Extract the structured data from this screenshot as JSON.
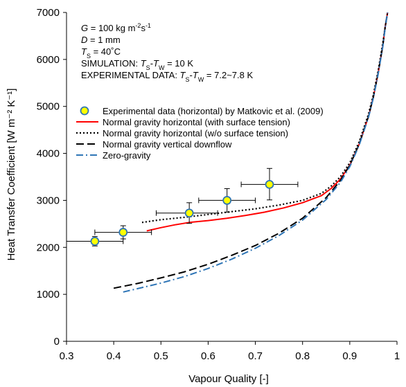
{
  "chart_data": {
    "type": "line",
    "xlabel": "Vapour Quality  [-]",
    "ylabel": "Heat Transfer Coefficient [W m⁻² K⁻¹]",
    "xlim": [
      0.3,
      1.0
    ],
    "ylim": [
      0,
      7000
    ],
    "x_ticks": [
      "0.3",
      "0.4",
      "0.5",
      "0.6",
      "0.7",
      "0.8",
      "0.9",
      "1"
    ],
    "y_ticks": [
      "0",
      "1000",
      "2000",
      "3000",
      "4000",
      "5000",
      "6000",
      "7000"
    ],
    "grid": false,
    "legend_position": "upper-left",
    "annotations": [
      {
        "segments": [
          {
            "t": "G",
            "s": "i"
          },
          {
            "t": " = 100 kg m"
          },
          {
            "t": "-2",
            "s": "sup"
          },
          {
            "t": "s"
          },
          {
            "t": "-1",
            "s": "sup"
          }
        ]
      },
      {
        "segments": [
          {
            "t": "D",
            "s": "i"
          },
          {
            "t": " = 1 mm"
          }
        ]
      },
      {
        "segments": [
          {
            "t": "T",
            "s": "i"
          },
          {
            "t": "S",
            "s": "sub"
          },
          {
            "t": " = 40˚C"
          }
        ]
      },
      {
        "segments": [
          {
            "t": "SIMULATION: "
          },
          {
            "t": "T",
            "s": "i"
          },
          {
            "t": "S",
            "s": "sub"
          },
          {
            "t": "-"
          },
          {
            "t": "T",
            "s": "i"
          },
          {
            "t": "W",
            "s": "sub"
          },
          {
            "t": " = 10 K"
          }
        ]
      },
      {
        "segments": [
          {
            "t": "EXPERIMENTAL DATA: "
          },
          {
            "t": "T",
            "s": "i"
          },
          {
            "t": "S",
            "s": "sub"
          },
          {
            "t": "-"
          },
          {
            "t": "T",
            "s": "i"
          },
          {
            "t": "W",
            "s": "sub"
          },
          {
            "t": " = 7.2~7.8 K"
          }
        ]
      }
    ],
    "experimental": {
      "name": "Experimental data (horizontal) by Matkovic et al. (2009)",
      "marker_fill": "#ffff00",
      "marker_edge": "#2e75b6",
      "points": [
        {
          "x": 0.36,
          "y": 2130,
          "xerr": [
            0.3,
            0.42
          ],
          "yerr": [
            2030,
            2230
          ]
        },
        {
          "x": 0.42,
          "y": 2320,
          "xerr": [
            0.36,
            0.48
          ],
          "yerr": [
            2180,
            2460
          ]
        },
        {
          "x": 0.56,
          "y": 2730,
          "xerr": [
            0.49,
            0.62
          ],
          "yerr": [
            2510,
            2950
          ]
        },
        {
          "x": 0.64,
          "y": 3000,
          "xerr": [
            0.58,
            0.7
          ],
          "yerr": [
            2750,
            3250
          ]
        },
        {
          "x": 0.73,
          "y": 3340,
          "xerr": [
            0.67,
            0.79
          ],
          "yerr": [
            3010,
            3680
          ]
        }
      ]
    },
    "series": [
      {
        "name": "Normal gravity horizontal (with surface tension)",
        "color": "#ff0000",
        "dash": "solid",
        "x": [
          0.47,
          0.5,
          0.53,
          0.56,
          0.6,
          0.64,
          0.68,
          0.72,
          0.76,
          0.8,
          0.84,
          0.86,
          0.88,
          0.9,
          0.92,
          0.94,
          0.95,
          0.96,
          0.97,
          0.975,
          0.98
        ],
        "y": [
          2350,
          2420,
          2480,
          2530,
          2570,
          2620,
          2680,
          2750,
          2840,
          2950,
          3100,
          3250,
          3450,
          3750,
          4200,
          4800,
          5200,
          5700,
          6300,
          6700,
          7000
        ]
      },
      {
        "name": "Normal gravity horizontal (w/o surface tension)",
        "color": "#000000",
        "dash": "dot",
        "x": [
          0.46,
          0.5,
          0.55,
          0.6,
          0.65,
          0.7,
          0.75,
          0.8,
          0.84,
          0.86,
          0.88,
          0.9,
          0.92,
          0.94,
          0.95,
          0.96,
          0.97,
          0.975,
          0.98
        ],
        "y": [
          2530,
          2590,
          2640,
          2700,
          2760,
          2820,
          2900,
          3000,
          3150,
          3300,
          3500,
          3800,
          4250,
          4850,
          5250,
          5750,
          6350,
          6700,
          7000
        ]
      },
      {
        "name": "Normal gravity vertical downflow",
        "color": "#000000",
        "dash": "dash",
        "x": [
          0.4,
          0.45,
          0.5,
          0.55,
          0.6,
          0.65,
          0.7,
          0.75,
          0.8,
          0.85,
          0.88,
          0.9,
          0.92,
          0.94,
          0.95,
          0.96,
          0.97,
          0.975,
          0.98
        ],
        "y": [
          1130,
          1230,
          1350,
          1480,
          1640,
          1830,
          2040,
          2300,
          2620,
          3060,
          3420,
          3750,
          4200,
          4800,
          5200,
          5700,
          6300,
          6700,
          7000
        ]
      },
      {
        "name": "Zero-gravity",
        "color": "#2e75b6",
        "dash": "dashdot",
        "x": [
          0.42,
          0.45,
          0.5,
          0.55,
          0.6,
          0.65,
          0.7,
          0.75,
          0.8,
          0.85,
          0.88,
          0.9,
          0.92,
          0.94,
          0.95,
          0.96,
          0.97,
          0.975,
          0.98
        ],
        "y": [
          1050,
          1120,
          1240,
          1380,
          1550,
          1750,
          1980,
          2250,
          2580,
          3020,
          3380,
          3720,
          4180,
          4780,
          5180,
          5680,
          6280,
          6680,
          7000
        ]
      }
    ]
  }
}
